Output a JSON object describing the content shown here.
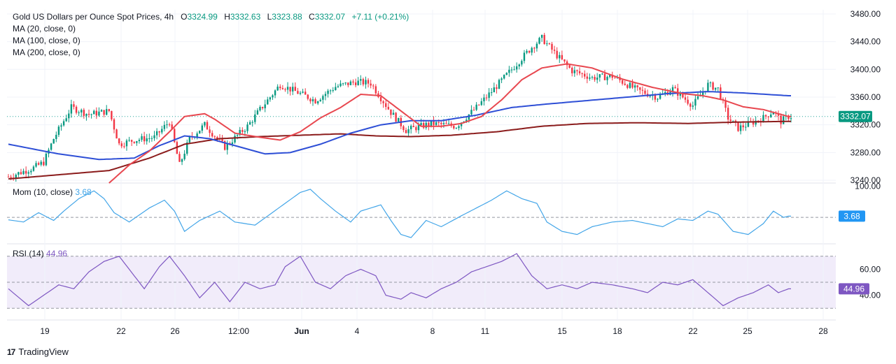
{
  "header": {
    "title": "Gold US Dollars per Ounce Spot Prices, 4h",
    "open_label": "O",
    "open": "3324.99",
    "high_label": "H",
    "high": "3332.63",
    "low_label": "L",
    "low": "3323.88",
    "close_label": "C",
    "close": "3332.07",
    "change": "+7.11 (+0.21%)"
  },
  "indicators": {
    "ma20": "MA (20, close, 0)",
    "ma100": "MA (100, close, 0)",
    "ma200": "MA (200, close, 0)",
    "mom_label": "Mom (10, close)",
    "mom_value": "3.68",
    "rsi_label": "RSI (14)",
    "rsi_value": "44.96"
  },
  "branding": {
    "name": "TradingView"
  },
  "colors": {
    "up": "#089981",
    "down": "#f23645",
    "ma20": "#e8474f",
    "ma100": "#2e4fd6",
    "ma200": "#8b1c1c",
    "mom": "#42a5e8",
    "rsi": "#7e57c2",
    "rsi_band": "#f1ecfa"
  },
  "chart_data": [
    {
      "type": "candlestick",
      "title": "Gold US Dollars per Ounce Spot Prices, 4h",
      "price_axis": [
        "3480.00",
        "3440.00",
        "3400.00",
        "3360.00",
        "3320.00",
        "3280.00",
        "3240.00"
      ],
      "ylim": [
        3236,
        3486
      ],
      "last_price": "3332.07",
      "x_ticks": [
        "19",
        "22",
        "26",
        "12:00",
        "Jun",
        "4",
        "8",
        "11",
        "15",
        "18",
        "22",
        "25",
        "28"
      ],
      "price_anchors": [
        [
          0,
          3245
        ],
        [
          10,
          3258
        ],
        [
          14,
          3266
        ],
        [
          18,
          3300
        ],
        [
          25,
          3345
        ],
        [
          32,
          3335
        ],
        [
          40,
          3340
        ],
        [
          44,
          3292
        ],
        [
          50,
          3298
        ],
        [
          58,
          3302
        ],
        [
          64,
          3325
        ],
        [
          68,
          3262
        ],
        [
          72,
          3300
        ],
        [
          78,
          3320
        ],
        [
          86,
          3288
        ],
        [
          95,
          3318
        ],
        [
          100,
          3342
        ],
        [
          108,
          3378
        ],
        [
          116,
          3365
        ],
        [
          122,
          3355
        ],
        [
          130,
          3375
        ],
        [
          138,
          3382
        ],
        [
          144,
          3380
        ],
        [
          152,
          3338
        ],
        [
          158,
          3312
        ],
        [
          168,
          3322
        ],
        [
          178,
          3318
        ],
        [
          186,
          3345
        ],
        [
          192,
          3368
        ],
        [
          200,
          3400
        ],
        [
          208,
          3432
        ],
        [
          212,
          3445
        ],
        [
          218,
          3420
        ],
        [
          224,
          3398
        ],
        [
          232,
          3388
        ],
        [
          240,
          3390
        ],
        [
          250,
          3370
        ],
        [
          258,
          3360
        ],
        [
          264,
          3372
        ],
        [
          272,
          3348
        ],
        [
          278,
          3378
        ],
        [
          282,
          3372
        ],
        [
          286,
          3330
        ],
        [
          290,
          3315
        ],
        [
          296,
          3324
        ],
        [
          300,
          3330
        ],
        [
          304,
          3340
        ],
        [
          307,
          3325
        ],
        [
          310,
          3332
        ]
      ],
      "ma20_anchors": [
        [
          40,
          3236
        ],
        [
          48,
          3262
        ],
        [
          56,
          3282
        ],
        [
          64,
          3310
        ],
        [
          70,
          3332
        ],
        [
          78,
          3336
        ],
        [
          82,
          3328
        ],
        [
          90,
          3308
        ],
        [
          100,
          3302
        ],
        [
          108,
          3298
        ],
        [
          116,
          3310
        ],
        [
          124,
          3330
        ],
        [
          132,
          3345
        ],
        [
          140,
          3364
        ],
        [
          148,
          3362
        ],
        [
          156,
          3340
        ],
        [
          164,
          3318
        ],
        [
          172,
          3318
        ],
        [
          180,
          3322
        ],
        [
          188,
          3332
        ],
        [
          196,
          3356
        ],
        [
          204,
          3385
        ],
        [
          212,
          3402
        ],
        [
          222,
          3408
        ],
        [
          232,
          3402
        ],
        [
          244,
          3386
        ],
        [
          256,
          3374
        ],
        [
          268,
          3365
        ],
        [
          276,
          3362
        ],
        [
          284,
          3356
        ],
        [
          292,
          3346
        ],
        [
          300,
          3342
        ],
        [
          306,
          3336
        ],
        [
          310,
          3332
        ]
      ],
      "ma100_anchors": [
        [
          0,
          3292
        ],
        [
          20,
          3278
        ],
        [
          36,
          3270
        ],
        [
          50,
          3272
        ],
        [
          60,
          3290
        ],
        [
          70,
          3304
        ],
        [
          80,
          3300
        ],
        [
          90,
          3290
        ],
        [
          102,
          3278
        ],
        [
          112,
          3280
        ],
        [
          124,
          3292
        ],
        [
          136,
          3308
        ],
        [
          148,
          3320
        ],
        [
          160,
          3326
        ],
        [
          172,
          3326
        ],
        [
          186,
          3334
        ],
        [
          200,
          3345
        ],
        [
          214,
          3350
        ],
        [
          230,
          3355
        ],
        [
          246,
          3360
        ],
        [
          262,
          3365
        ],
        [
          278,
          3368
        ],
        [
          292,
          3366
        ],
        [
          310,
          3362
        ]
      ],
      "ma200_anchors": [
        [
          0,
          3242
        ],
        [
          20,
          3248
        ],
        [
          40,
          3254
        ],
        [
          56,
          3272
        ],
        [
          70,
          3292
        ],
        [
          84,
          3300
        ],
        [
          100,
          3303
        ],
        [
          116,
          3305
        ],
        [
          132,
          3307
        ],
        [
          146,
          3304
        ],
        [
          160,
          3303
        ],
        [
          176,
          3305
        ],
        [
          194,
          3310
        ],
        [
          212,
          3318
        ],
        [
          230,
          3322
        ],
        [
          250,
          3323
        ],
        [
          270,
          3322
        ],
        [
          290,
          3324
        ],
        [
          310,
          3325
        ]
      ]
    },
    {
      "type": "line",
      "series_name": "Mom (10, close)",
      "y_axis": [
        "100.00"
      ],
      "ylim": [
        -85,
        110
      ],
      "last_value": "3.68",
      "anchors": [
        [
          0,
          -8
        ],
        [
          6,
          -15
        ],
        [
          12,
          15
        ],
        [
          18,
          -10
        ],
        [
          22,
          20
        ],
        [
          28,
          60
        ],
        [
          34,
          85
        ],
        [
          38,
          60
        ],
        [
          42,
          15
        ],
        [
          48,
          -15
        ],
        [
          56,
          30
        ],
        [
          62,
          55
        ],
        [
          66,
          20
        ],
        [
          70,
          -45
        ],
        [
          76,
          -10
        ],
        [
          84,
          20
        ],
        [
          90,
          -15
        ],
        [
          98,
          -25
        ],
        [
          104,
          10
        ],
        [
          110,
          45
        ],
        [
          116,
          80
        ],
        [
          120,
          90
        ],
        [
          124,
          60
        ],
        [
          130,
          20
        ],
        [
          136,
          -15
        ],
        [
          140,
          20
        ],
        [
          148,
          40
        ],
        [
          152,
          -10
        ],
        [
          156,
          -55
        ],
        [
          160,
          -65
        ],
        [
          166,
          -10
        ],
        [
          172,
          -30
        ],
        [
          180,
          5
        ],
        [
          186,
          30
        ],
        [
          192,
          55
        ],
        [
          198,
          85
        ],
        [
          204,
          60
        ],
        [
          210,
          45
        ],
        [
          214,
          -15
        ],
        [
          220,
          -45
        ],
        [
          226,
          -55
        ],
        [
          232,
          -30
        ],
        [
          240,
          -15
        ],
        [
          248,
          -10
        ],
        [
          254,
          -20
        ],
        [
          260,
          -30
        ],
        [
          266,
          -5
        ],
        [
          272,
          -10
        ],
        [
          278,
          20
        ],
        [
          282,
          10
        ],
        [
          288,
          -45
        ],
        [
          294,
          -55
        ],
        [
          300,
          -20
        ],
        [
          304,
          20
        ],
        [
          308,
          0
        ],
        [
          310,
          3.68
        ]
      ]
    },
    {
      "type": "line",
      "series_name": "RSI (14)",
      "y_axis": [
        "60.00",
        "40.00"
      ],
      "ylim": [
        21,
        79
      ],
      "bands": [
        30,
        50,
        70
      ],
      "last_value": "44.96",
      "anchors": [
        [
          0,
          45
        ],
        [
          8,
          32
        ],
        [
          14,
          40
        ],
        [
          20,
          48
        ],
        [
          26,
          45
        ],
        [
          32,
          58
        ],
        [
          38,
          66
        ],
        [
          44,
          70
        ],
        [
          48,
          60
        ],
        [
          54,
          45
        ],
        [
          60,
          62
        ],
        [
          64,
          70
        ],
        [
          70,
          55
        ],
        [
          76,
          38
        ],
        [
          82,
          50
        ],
        [
          88,
          35
        ],
        [
          94,
          50
        ],
        [
          100,
          45
        ],
        [
          106,
          48
        ],
        [
          110,
          62
        ],
        [
          116,
          70
        ],
        [
          122,
          50
        ],
        [
          128,
          45
        ],
        [
          134,
          55
        ],
        [
          140,
          60
        ],
        [
          146,
          55
        ],
        [
          150,
          40
        ],
        [
          156,
          37
        ],
        [
          160,
          42
        ],
        [
          166,
          38
        ],
        [
          172,
          45
        ],
        [
          178,
          50
        ],
        [
          184,
          58
        ],
        [
          190,
          62
        ],
        [
          196,
          66
        ],
        [
          202,
          72
        ],
        [
          208,
          55
        ],
        [
          214,
          45
        ],
        [
          220,
          48
        ],
        [
          226,
          45
        ],
        [
          232,
          50
        ],
        [
          240,
          48
        ],
        [
          248,
          45
        ],
        [
          254,
          42
        ],
        [
          260,
          50
        ],
        [
          266,
          48
        ],
        [
          272,
          52
        ],
        [
          278,
          42
        ],
        [
          284,
          32
        ],
        [
          290,
          38
        ],
        [
          296,
          42
        ],
        [
          302,
          48
        ],
        [
          306,
          42
        ],
        [
          310,
          44.96
        ]
      ]
    }
  ]
}
